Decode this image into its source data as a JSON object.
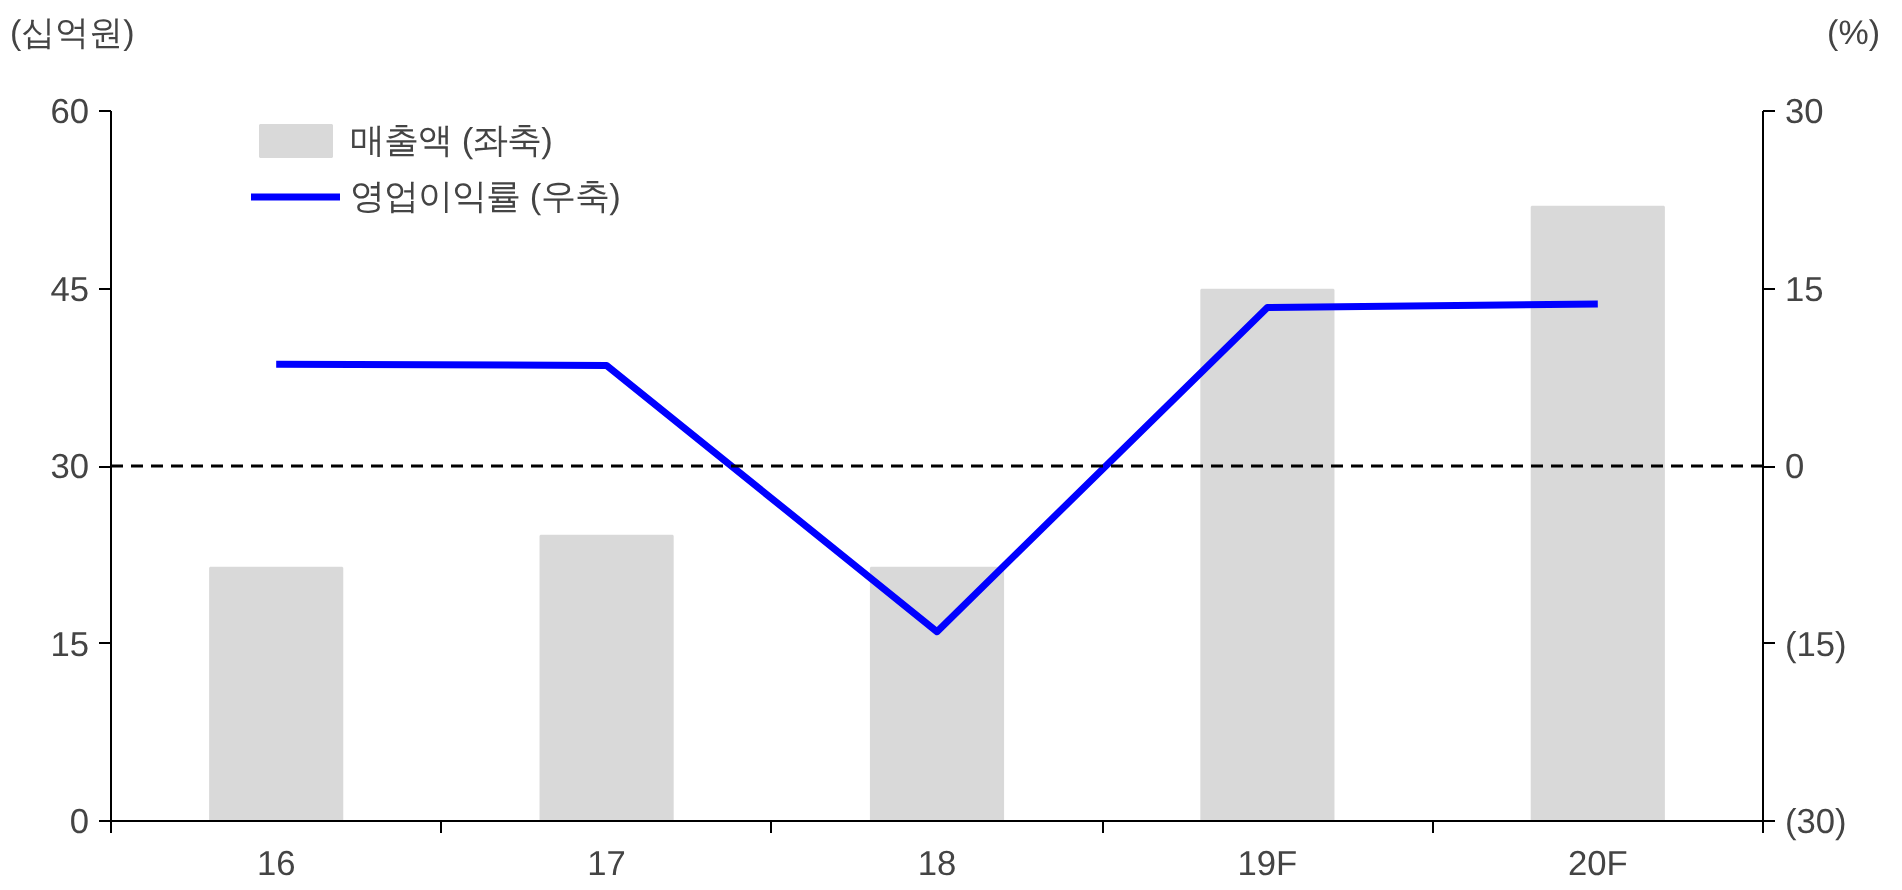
{
  "chart_data": {
    "type": "bar",
    "ylabel": "(십억원)",
    "y2label": "(%)",
    "categories": [
      "16",
      "17",
      "18",
      "19F",
      "20F"
    ],
    "series": [
      {
        "name": "매출액 (좌축)",
        "color": "#d9d9d9",
        "values": [
          21.4,
          24.1,
          21.4,
          44.9,
          51.9
        ]
      },
      {
        "name": "영업이익률 (우축)",
        "type": "line",
        "axis": "y2",
        "color": "#0000ff",
        "values": [
          8.6,
          8.5,
          -14.0,
          13.4,
          13.7
        ]
      }
    ],
    "ylim": [
      0,
      60
    ],
    "yticks": [
      0,
      15,
      30,
      45,
      60
    ],
    "y2lim": [
      -30,
      30
    ],
    "y2ticks": [
      {
        "value": -30,
        "label": "(30)"
      },
      {
        "value": -15,
        "label": "(15)"
      },
      0,
      15,
      30
    ],
    "ref_lines": [
      {
        "axis": "y2",
        "value": 0,
        "color": "#000000",
        "line_style": "dashed"
      }
    ],
    "legend": "top left",
    "grid": false
  }
}
